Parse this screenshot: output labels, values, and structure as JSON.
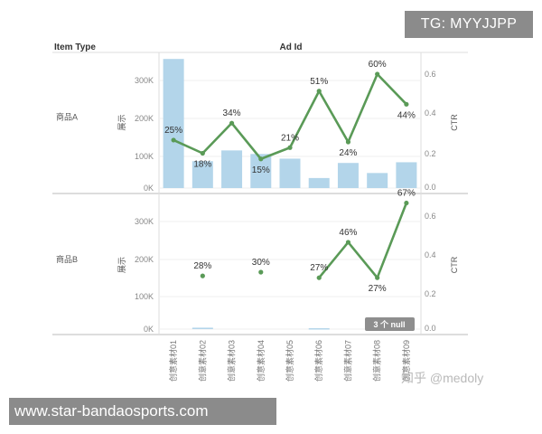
{
  "banner_top": "TG: MYYJJPP",
  "banner_bottom": "www.star-bandaosports.com",
  "watermark": "知乎 @medoly",
  "headers": {
    "item_type": "Item Type",
    "ad_id": "Ad Id"
  },
  "null_badge": "3 个 null",
  "colors": {
    "bar": "#b3d5ea",
    "line": "#5a9a57",
    "label": "#333333",
    "axis": "#888888"
  },
  "chart_data": [
    {
      "type": "bar+line",
      "row_label": "商品A",
      "categories": [
        "创意素材01",
        "创意素材02",
        "创意素材03",
        "创意素材04",
        "创意素材05",
        "创意素材06",
        "创意素材07",
        "创意素材08",
        "创意素材09"
      ],
      "bar_values": [
        360000,
        75000,
        105000,
        95000,
        82000,
        28000,
        70000,
        42000,
        72000
      ],
      "ctr_values": [
        0.25,
        0.18,
        0.34,
        0.15,
        0.21,
        0.51,
        0.24,
        0.6,
        0.44
      ],
      "ctr_labels": [
        "25%",
        "18%",
        "34%",
        "15%",
        "21%",
        "51%",
        "24%",
        "60%",
        "44%"
      ],
      "ylabel_left": "展示",
      "ylabel_right": "CTR",
      "left_ticks": [
        "0K",
        "100K",
        "200K",
        "300K"
      ],
      "right_ticks": [
        "0.0",
        "0.2",
        "0.4",
        "0.6"
      ],
      "ylim_left": [
        0,
        360000
      ],
      "ylim_right": [
        0,
        0.72
      ]
    },
    {
      "type": "bar+line",
      "row_label": "商品B",
      "categories": [
        "创意素材01",
        "创意素材02",
        "创意素材03",
        "创意素材04",
        "创意素材05",
        "创意素材06",
        "创意素材07",
        "创意素材08",
        "创意素材09"
      ],
      "bar_values": [
        0,
        4000,
        0,
        0,
        0,
        2500,
        0,
        2500,
        0
      ],
      "ctr_values": [
        null,
        0.28,
        null,
        0.3,
        null,
        0.27,
        0.46,
        0.27,
        0.67
      ],
      "ctr_labels": [
        "",
        "28%",
        "",
        "30%",
        "",
        "27%",
        "46%",
        "27%",
        "67%"
      ],
      "ylabel_left": "展示",
      "ylabel_right": "CTR",
      "left_ticks": [
        "0K",
        "100K",
        "200K",
        "300K"
      ],
      "right_ticks": [
        "0.0",
        "0.2",
        "0.4",
        "0.6"
      ],
      "ylim_left": [
        0,
        360000
      ],
      "ylim_right": [
        0,
        0.72
      ]
    }
  ]
}
